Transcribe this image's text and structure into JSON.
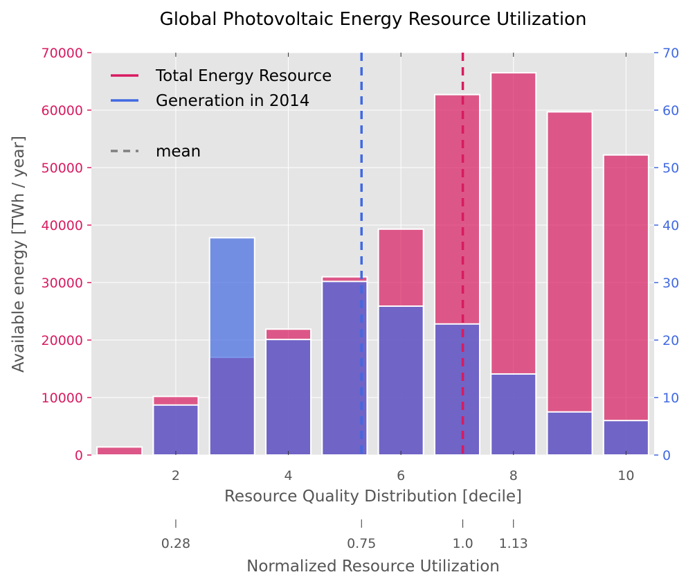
{
  "chart_data": {
    "type": "bar",
    "title": "Global Photovoltaic Energy Resource Utilization",
    "xlabel": "Resource Quality Distribution [decile]",
    "ylabel": "Available energy [TWh / year]",
    "secondary_xlabel": "Normalized Resource Utilization",
    "x": [
      1,
      2,
      3,
      4,
      5,
      6,
      7,
      8,
      9,
      10
    ],
    "xlim": [
      0.5,
      10.5
    ],
    "x_ticks": [
      2,
      4,
      6,
      8,
      10
    ],
    "ylim_left": [
      0,
      70000
    ],
    "y_ticks_left": [
      0,
      10000,
      20000,
      30000,
      40000,
      50000,
      60000,
      70000
    ],
    "ylim_right": [
      0,
      70
    ],
    "y_ticks_right": [
      0,
      10,
      20,
      30,
      40,
      50,
      60,
      70
    ],
    "secondary_x_ticks": [
      {
        "x": 2.0,
        "label": "0.28"
      },
      {
        "x": 5.3,
        "label": "0.75"
      },
      {
        "x": 7.1,
        "label": "1.0"
      },
      {
        "x": 8.0,
        "label": "1.13"
      }
    ],
    "series": [
      {
        "name": "Total Energy Resource",
        "axis": "left",
        "color": "#d81b60",
        "values": [
          1400,
          10200,
          17000,
          21900,
          31000,
          39300,
          62700,
          66500,
          59700,
          52200
        ],
        "mean_x": 7.1
      },
      {
        "name": "Generation in 2014",
        "axis": "right",
        "color": "#4169e1",
        "values": [
          0,
          8.7,
          37.8,
          20.1,
          30.2,
          25.9,
          22.8,
          14.1,
          7.5,
          6.0
        ],
        "mean_x": 5.3
      }
    ],
    "legend": {
      "placement": "top-left",
      "entries": [
        "Total Energy Resource",
        "Generation in 2014"
      ],
      "mean_label": "mean"
    },
    "grid": true,
    "colors": {
      "plot_bg": "#e5e5e5",
      "grid": "#ffffff",
      "text": "#555555",
      "mean_legend": "#808080"
    }
  }
}
